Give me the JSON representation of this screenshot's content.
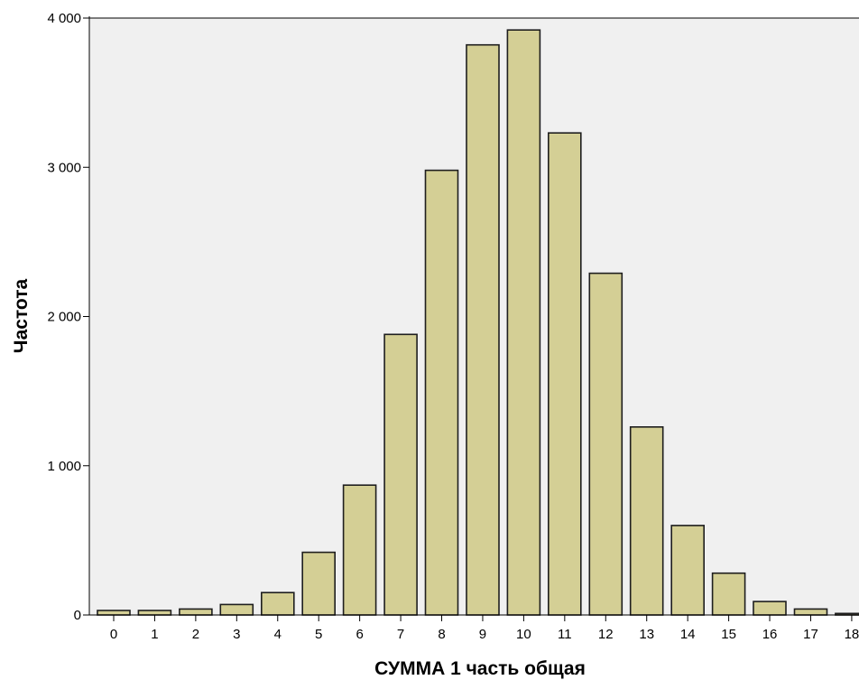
{
  "chart_data": {
    "type": "bar",
    "title": "",
    "xlabel": "СУММА 1 часть общая",
    "ylabel": "Частота",
    "categories": [
      "0",
      "1",
      "2",
      "3",
      "4",
      "5",
      "6",
      "7",
      "8",
      "9",
      "10",
      "11",
      "12",
      "13",
      "14",
      "15",
      "16",
      "17",
      "18"
    ],
    "values": [
      30,
      30,
      40,
      70,
      150,
      420,
      870,
      1880,
      2980,
      3820,
      3920,
      3230,
      2290,
      1260,
      600,
      280,
      90,
      40,
      10
    ],
    "ylim": [
      0,
      4000
    ],
    "yticks": [
      0,
      1000,
      2000,
      3000,
      4000
    ],
    "ytick_labels": [
      "0",
      "1 000",
      "2 000",
      "3 000",
      "4 000"
    ],
    "grid": false,
    "colors": {
      "bar_fill": "#d4cf95",
      "bar_stroke": "#1e1e1e",
      "plot_background": "#f0f0f0"
    }
  }
}
